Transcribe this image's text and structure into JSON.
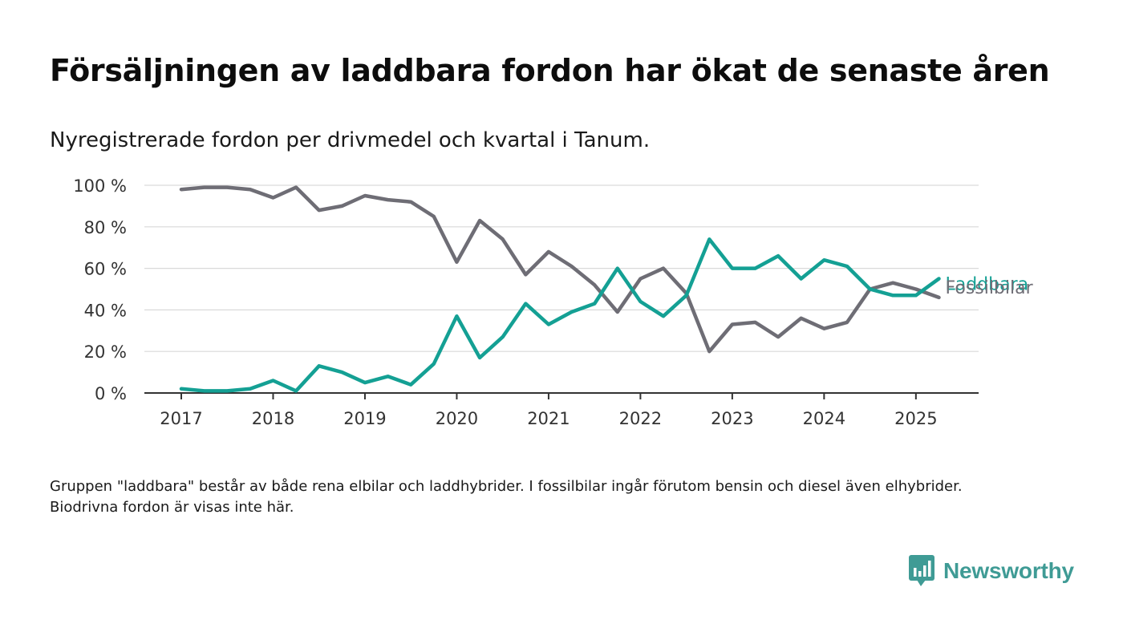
{
  "title": "Försäljningen av laddbara fordon har ökat de senaste åren",
  "subtitle": "Nyregistrerade fordon per drivmedel och kvartal i Tanum.",
  "note": "Gruppen \"laddbara\" består av både rena elbilar och laddhybrider. I fossilbilar ingår förutom bensin och diesel även elhybrider. Biodrivna fordon är visas inte här.",
  "brand": {
    "name": "Newsworthy",
    "color": "#3f9b95"
  },
  "chart_data": {
    "type": "line",
    "x_ticks": [
      "2017",
      "2018",
      "2019",
      "2020",
      "2021",
      "2022",
      "2023",
      "2024",
      "2025"
    ],
    "y_ticks": [
      "0 %",
      "20 %",
      "40 %",
      "60 %",
      "80 %",
      "100 %"
    ],
    "ylim": [
      0,
      100
    ],
    "grid": true,
    "x": [
      "2017 Q1",
      "2017 Q2",
      "2017 Q3",
      "2017 Q4",
      "2018 Q1",
      "2018 Q2",
      "2018 Q3",
      "2018 Q4",
      "2019 Q1",
      "2019 Q2",
      "2019 Q3",
      "2019 Q4",
      "2020 Q1",
      "2020 Q2",
      "2020 Q3",
      "2020 Q4",
      "2021 Q1",
      "2021 Q2",
      "2021 Q3",
      "2021 Q4",
      "2022 Q1",
      "2022 Q2",
      "2022 Q3",
      "2022 Q4",
      "2023 Q1",
      "2023 Q2",
      "2023 Q3",
      "2023 Q4",
      "2024 Q1",
      "2024 Q2",
      "2024 Q3",
      "2024 Q4",
      "2025 Q1",
      "2025 Q2"
    ],
    "series": [
      {
        "name": "Fossilbilar",
        "color": "#6e6d75",
        "values": [
          98,
          99,
          99,
          98,
          94,
          99,
          88,
          90,
          95,
          93,
          92,
          85,
          63,
          83,
          74,
          57,
          68,
          61,
          52,
          39,
          55,
          60,
          48,
          20,
          33,
          34,
          27,
          36,
          31,
          34,
          50,
          53,
          50,
          46
        ]
      },
      {
        "name": "Laddbara",
        "color": "#14a094",
        "values": [
          2,
          1,
          1,
          2,
          6,
          1,
          13,
          10,
          5,
          8,
          4,
          14,
          37,
          17,
          27,
          43,
          33,
          39,
          43,
          60,
          44,
          37,
          47,
          74,
          60,
          60,
          66,
          55,
          64,
          61,
          50,
          47,
          47,
          55
        ]
      }
    ]
  }
}
